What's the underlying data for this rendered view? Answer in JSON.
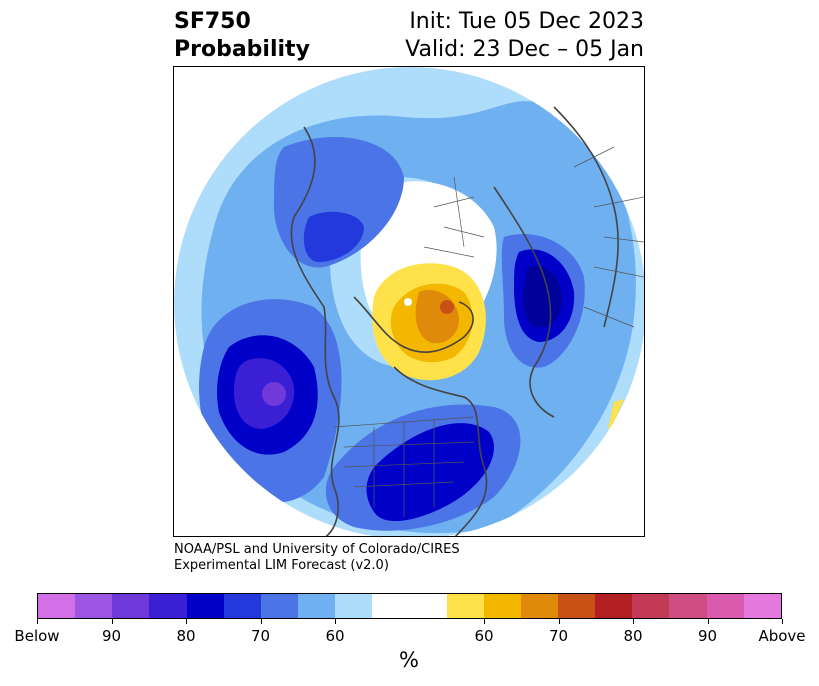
{
  "title": {
    "line1_left": "SF750",
    "line2_left": "Probability",
    "line1_right": "Init: Tue 05 Dec 2023",
    "line2_right": "Valid: 23 Dec – 05 Jan"
  },
  "credit": {
    "line1": "NOAA/PSL and University of Colorado/CIRES",
    "line2": "Experimental LIM Forecast (v2.0)"
  },
  "colorbar": {
    "unit": "%",
    "colors": [
      "#d36fe7",
      "#9d55e3",
      "#6f3ad9",
      "#3a1fd4",
      "#0000c8",
      "#2339dc",
      "#4b74e6",
      "#6fb0f0",
      "#aedcfb",
      "#ffffff",
      "#ffffff",
      "#ffe24a",
      "#f4b700",
      "#e08a0c",
      "#c85116",
      "#b22024",
      "#c23a55",
      "#cf4d82",
      "#da5aae",
      "#e478dc"
    ],
    "tick_labels": [
      "Below",
      "90",
      "80",
      "70",
      "60",
      "60",
      "70",
      "80",
      "90",
      "Above"
    ]
  },
  "map": {
    "projection": "north-polar-stereographic",
    "legend_colors": {
      "blue_60": "#aedcfb",
      "blue_65": "#6fb0f0",
      "blue_70": "#4b74e6",
      "blue_75": "#2339dc",
      "blue_80": "#0000c8",
      "blue_85": "#3a1fd4",
      "blue_90": "#6f3ad9",
      "yellow_60": "#ffe24a",
      "yellow_65": "#f4b700",
      "orange_70": "#e08a0c",
      "orange_75": "#c85116"
    }
  }
}
